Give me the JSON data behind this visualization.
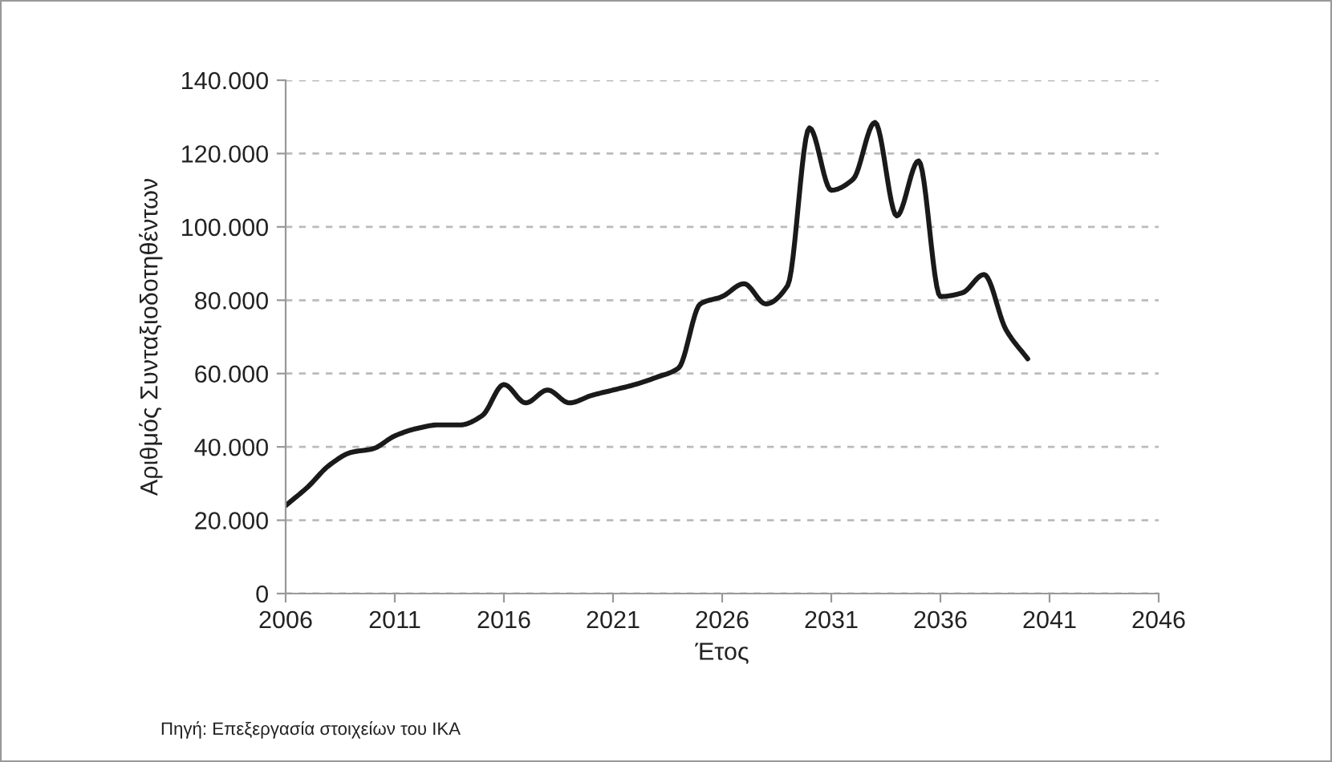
{
  "chart_data": {
    "type": "line",
    "xlabel": "Έτος",
    "ylabel": "Αριθμός Συνταξιοδοτηθέντων",
    "annotations": [
      "Πηγή: Επεξεργασία στοιχείων του ΙΚΑ"
    ],
    "x": [
      2006,
      2007,
      2008,
      2009,
      2010,
      2011,
      2012,
      2013,
      2014,
      2015,
      2016,
      2017,
      2018,
      2019,
      2020,
      2021,
      2022,
      2023,
      2024,
      2025,
      2026,
      2027,
      2028,
      2029,
      2030,
      2031,
      2032,
      2033,
      2034,
      2035,
      2036,
      2037,
      2038,
      2039,
      2040
    ],
    "series": [
      {
        "color": "#1a1a1a",
        "values": [
          24000,
          29000,
          35000,
          38500,
          39500,
          43000,
          45000,
          46000,
          46000,
          48500,
          57000,
          52000,
          55500,
          52000,
          54000,
          55500,
          57000,
          59000,
          61500,
          79000,
          81000,
          84500,
          79000,
          84000,
          127000,
          110000,
          113000,
          128500,
          103000,
          118000,
          81000,
          82000,
          87000,
          72000,
          64000
        ]
      }
    ],
    "xlim": [
      2006,
      2046
    ],
    "xticks": [
      2006,
      2011,
      2016,
      2021,
      2026,
      2031,
      2036,
      2041,
      2046
    ],
    "ylim": [
      0,
      140000
    ],
    "yticks": [
      0,
      {
        "value": 20000,
        "label": "20.000"
      },
      {
        "value": 40000,
        "label": "40.000"
      },
      {
        "value": 60000,
        "label": "60.000"
      },
      {
        "value": 80000,
        "label": "80.000"
      },
      {
        "value": 100000,
        "label": "100.000"
      },
      {
        "value": 120000,
        "label": "120.000"
      },
      {
        "value": 140000,
        "label": "140.000"
      }
    ],
    "grid": "y",
    "legend": false,
    "marker": "none",
    "line_style": "solid"
  }
}
